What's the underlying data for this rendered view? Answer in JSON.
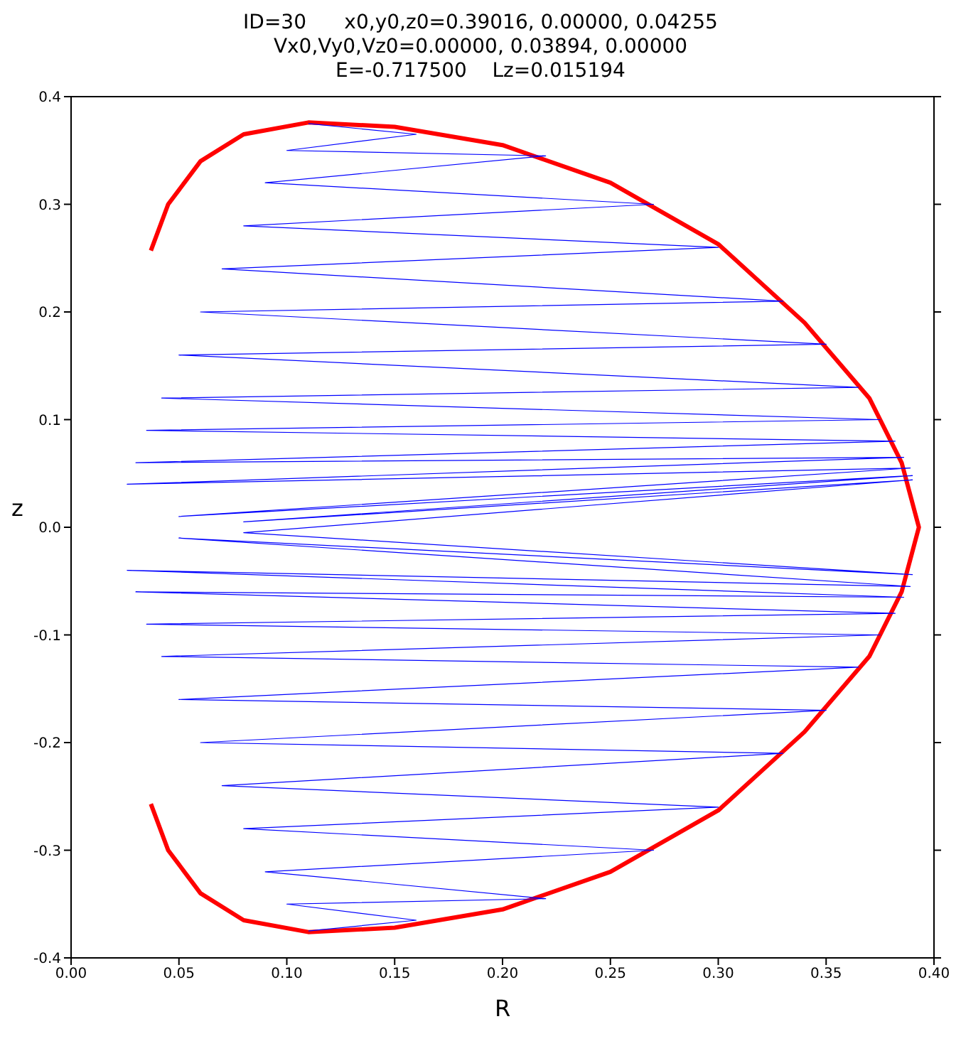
{
  "chart_data": {
    "type": "line",
    "title": "ID=30      x0,y0,z0=0.39016, 0.00000, 0.04255\nVx0,Vy0,Vz0=0.00000, 0.03894, 0.00000\nE=-0.717500    Lz=0.015194",
    "xlabel": "R",
    "ylabel": "z",
    "xlim": [
      0,
      0.4
    ],
    "ylim": [
      -0.4,
      0.4
    ],
    "xticks": [
      {
        "value": 0,
        "label": "0.00"
      },
      {
        "value": 0.05,
        "label": "0.05"
      },
      {
        "value": 0.1,
        "label": "0.10"
      },
      {
        "value": 0.15,
        "label": "0.15"
      },
      {
        "value": 0.2,
        "label": "0.20"
      },
      {
        "value": 0.25,
        "label": "0.25"
      },
      {
        "value": 0.3,
        "label": "0.30"
      },
      {
        "value": 0.35,
        "label": "0.35"
      },
      {
        "value": 0.4,
        "label": "0.40"
      }
    ],
    "yticks": [
      -0.4,
      -0.3,
      -0.2,
      -0.1,
      {
        "value": 0,
        "label": "0.0"
      },
      0.1,
      0.2,
      0.3,
      0.4
    ],
    "marker": "none",
    "line_style": "solid",
    "series": [
      {
        "color": "#0000ff",
        "x": [
          0.11,
          0.16,
          0.1,
          0.22,
          0.09,
          0.27,
          0.08,
          0.3,
          0.07,
          0.33,
          0.06,
          0.35,
          0.05,
          0.365,
          0.042,
          0.375,
          0.035,
          0.382,
          0.03,
          0.386,
          0.026,
          0.389,
          0.05,
          0.39,
          0.08,
          0.39,
          0.08,
          0.39,
          0.05,
          0.389,
          0.026,
          0.386,
          0.03,
          0.382,
          0.035,
          0.375,
          0.042,
          0.365,
          0.05,
          0.35,
          0.06,
          0.33,
          0.07,
          0.3,
          0.08,
          0.27,
          0.09,
          0.22,
          0.1,
          0.16,
          0.11
        ],
        "values": [
          0.375,
          0.365,
          0.35,
          0.345,
          0.32,
          0.3,
          0.28,
          0.26,
          0.24,
          0.21,
          0.2,
          0.17,
          0.16,
          0.13,
          0.12,
          0.1,
          0.09,
          0.08,
          0.06,
          0.065,
          0.04,
          0.055,
          0.01,
          0.048,
          0.005,
          0.044,
          -0.005,
          -0.044,
          -0.01,
          -0.055,
          -0.04,
          -0.065,
          -0.06,
          -0.08,
          -0.09,
          -0.1,
          -0.12,
          -0.13,
          -0.16,
          -0.17,
          -0.2,
          -0.21,
          -0.24,
          -0.26,
          -0.28,
          -0.3,
          -0.32,
          -0.345,
          -0.35,
          -0.365,
          -0.375
        ]
      },
      {
        "color": "#ff0000",
        "x": [
          0.037,
          0.045,
          0.06,
          0.08,
          0.11,
          0.15,
          0.2,
          0.25,
          0.3,
          0.34,
          0.37,
          0.385,
          0.393,
          0.385,
          0.37,
          0.34,
          0.3,
          0.25,
          0.2,
          0.15,
          0.11,
          0.08,
          0.06,
          0.045,
          0.037
        ],
        "values": [
          0.257,
          0.3,
          0.34,
          0.365,
          0.376,
          0.372,
          0.355,
          0.32,
          0.263,
          0.19,
          0.12,
          0.06,
          0,
          -0.06,
          -0.12,
          -0.19,
          -0.263,
          -0.32,
          -0.355,
          -0.372,
          -0.376,
          -0.365,
          -0.34,
          -0.3,
          -0.257
        ]
      }
    ]
  }
}
